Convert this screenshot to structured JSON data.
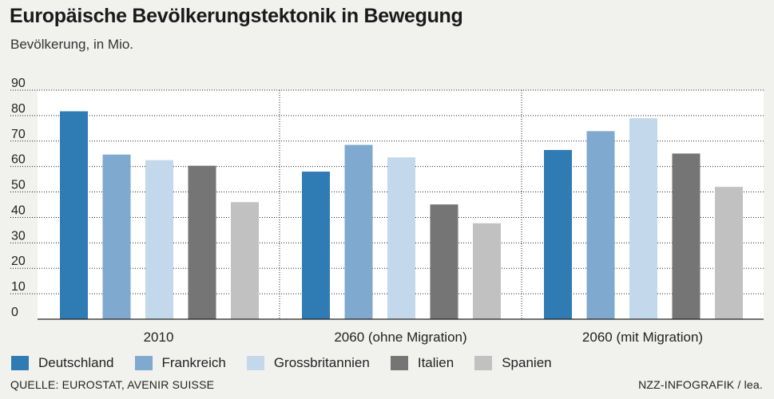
{
  "header": {
    "title": "Europäische Bevölkerungstektonik in Bewegung",
    "subtitle": "Bevölkerung, in Mio."
  },
  "footer": {
    "source": "QUELLE: EUROSTAT, AVENIR SUISSE",
    "credit": "NZZ-INFOGRAFIK / lea."
  },
  "chart_data": {
    "type": "bar",
    "title": "Europäische Bevölkerungstektonik in Bewegung",
    "subtitle": "Bevölkerung, in Mio.",
    "categories": [
      "2010",
      "2060 (ohne Migration)",
      "2060 (mit Migration)"
    ],
    "ylim": [
      0,
      90
    ],
    "yticks": [
      0,
      10,
      20,
      30,
      40,
      50,
      60,
      70,
      80,
      90
    ],
    "grid": true,
    "legend_position": "bottom",
    "series": [
      {
        "name": "Deutschland",
        "color": "#2f7bb3",
        "values": [
          81.7,
          58,
          66.5
        ]
      },
      {
        "name": "Frankreich",
        "color": "#7fa9cf",
        "values": [
          64.7,
          68.5,
          73.9
        ]
      },
      {
        "name": "Grossbritannien",
        "color": "#c3d8ea",
        "values": [
          62.5,
          63.6,
          79
        ]
      },
      {
        "name": "Italien",
        "color": "#757575",
        "values": [
          60.3,
          45.1,
          65.1
        ]
      },
      {
        "name": "Spanien",
        "color": "#c1c1c1",
        "values": [
          46,
          37.7,
          52
        ]
      }
    ]
  }
}
